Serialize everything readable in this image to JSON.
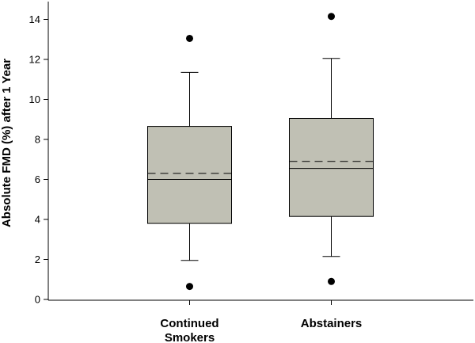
{
  "chart_data": {
    "type": "box",
    "title": "",
    "xlabel": "",
    "ylabel": "Absolute FMD (%) after 1 Year",
    "ylim": [
      0,
      14.8
    ],
    "yticks": [
      0,
      2,
      4,
      6,
      8,
      10,
      12,
      14
    ],
    "grid": false,
    "legend": "none",
    "box_color": "#c0c0b4",
    "groups": [
      {
        "label_lines": [
          "Continued",
          "Smokers"
        ],
        "whisker_low": 1.95,
        "q1": 3.8,
        "median": 6.0,
        "mean": 6.3,
        "q3": 8.65,
        "whisker_high": 11.35,
        "outliers": [
          0.65,
          13.05
        ]
      },
      {
        "label_lines": [
          "Abstainers"
        ],
        "whisker_low": 2.15,
        "q1": 4.15,
        "median": 6.55,
        "mean": 6.9,
        "q3": 9.05,
        "whisker_high": 12.05,
        "outliers": [
          0.9,
          14.15
        ]
      }
    ]
  }
}
